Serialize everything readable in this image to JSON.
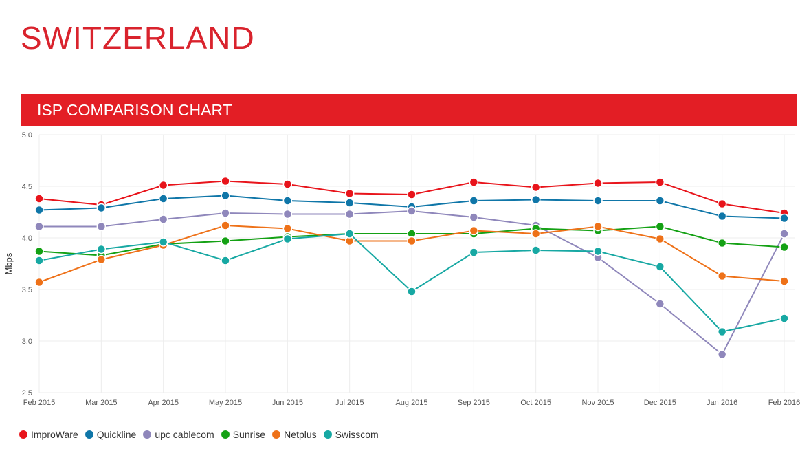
{
  "page_title": "SWITZERLAND",
  "banner_title": "ISP COMPARISON CHART",
  "chart_data": {
    "type": "line",
    "title": "ISP COMPARISON CHART",
    "xlabel": "",
    "ylabel": "Mbps",
    "ylim": [
      2.5,
      5.0
    ],
    "yticks": [
      "2.5",
      "3.0",
      "3.5",
      "4.0",
      "4.5",
      "5.0"
    ],
    "grid": true,
    "legend": "bottom-left",
    "categories": [
      "Feb 2015",
      "Mar 2015",
      "Apr 2015",
      "May 2015",
      "Jun 2015",
      "Jul 2015",
      "Aug 2015",
      "Sep 2015",
      "Oct 2015",
      "Nov 2015",
      "Dec 2015",
      "Jan 2016",
      "Feb 2016"
    ],
    "series": [
      {
        "name": "ImproWare",
        "color": "#e8141b",
        "values": [
          4.38,
          4.32,
          4.51,
          4.55,
          4.52,
          4.43,
          4.42,
          4.54,
          4.49,
          4.53,
          4.54,
          4.33,
          4.24
        ]
      },
      {
        "name": "Quickline",
        "color": "#0f76a8",
        "values": [
          4.27,
          4.29,
          4.38,
          4.41,
          4.36,
          4.34,
          4.3,
          4.36,
          4.37,
          4.36,
          4.36,
          4.21,
          4.19
        ]
      },
      {
        "name": "upc cablecom",
        "color": "#8f87bb",
        "values": [
          4.11,
          4.11,
          4.18,
          4.24,
          4.23,
          4.23,
          4.26,
          4.2,
          4.12,
          3.81,
          3.36,
          2.87,
          4.04
        ]
      },
      {
        "name": "Sunrise",
        "color": "#14a114",
        "values": [
          3.87,
          3.83,
          3.94,
          3.97,
          4.01,
          4.04,
          4.04,
          4.04,
          4.09,
          4.07,
          4.11,
          3.95,
          3.91
        ]
      },
      {
        "name": "Netplus",
        "color": "#ee7118",
        "values": [
          3.57,
          3.79,
          3.93,
          4.12,
          4.09,
          3.97,
          3.97,
          4.07,
          4.04,
          4.11,
          3.99,
          3.63,
          3.58
        ]
      },
      {
        "name": "Swisscom",
        "color": "#17a8a3",
        "values": [
          3.78,
          3.89,
          3.96,
          3.78,
          3.99,
          4.04,
          3.48,
          3.86,
          3.88,
          3.87,
          3.72,
          3.09,
          3.22
        ]
      }
    ]
  }
}
